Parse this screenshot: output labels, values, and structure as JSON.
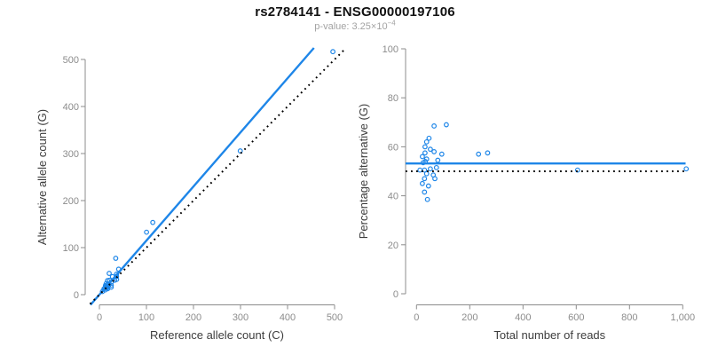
{
  "header": {
    "title": "rs2784141 - ENSG00000197106",
    "subtitle_prefix": "p-value: 3.25×10",
    "subtitle_exponent": "−4"
  },
  "colors": {
    "accent_blue": "#1e86e8",
    "dotted_black": "#000000",
    "axis_line": "#8c8c8c",
    "tick_label": "#8c8c8c",
    "axis_title": "#3d3d3d",
    "title": "#111111",
    "subtitle": "#a3a3a3"
  },
  "chart_data": [
    {
      "type": "scatter",
      "panel": "left",
      "xlabel": "Reference allele count (C)",
      "ylabel": "Alternative allele count (G)",
      "xlim": [
        0,
        500
      ],
      "ylim": [
        0,
        500
      ],
      "xticks": [
        0,
        100,
        200,
        300,
        400,
        500
      ],
      "xtick_labels": [
        "0",
        "100",
        "200",
        "300",
        "400",
        "500"
      ],
      "yticks": [
        0,
        100,
        200,
        300,
        400,
        500
      ],
      "ytick_labels": [
        "0",
        "100",
        "200",
        "300",
        "400",
        "500"
      ],
      "grid": false,
      "legend": "none",
      "marker": "open-circle",
      "points": [
        [
          20.8,
          45.2
        ],
        [
          34.7,
          77.3
        ],
        [
          17.2,
          29.8
        ],
        [
          14.4,
          23.6
        ],
        [
          12.8,
          19.2
        ],
        [
          21.3,
          30.7
        ],
        [
          27.7,
          38.3
        ],
        [
          13.6,
          18.4
        ],
        [
          40.9,
          54.2
        ],
        [
          100.2,
          132.8
        ],
        [
          113.5,
          153.5
        ],
        [
          9.7,
          12.3
        ],
        [
          17.1,
          20.9
        ],
        [
          36.4,
          43.6
        ],
        [
          15.2,
          17.8
        ],
        [
          11.6,
          13.4
        ],
        [
          6.4,
          6.6
        ],
        [
          14.9,
          15.2
        ],
        [
          25.5,
          26.5
        ],
        [
          36.4,
          38.6
        ],
        [
          19.4,
          18.6
        ],
        [
          32.4,
          30.6
        ],
        [
          36.6,
          32.4
        ],
        [
          15.9,
          14.1
        ],
        [
          12.1,
          9.9
        ],
        [
          25.2,
          19.8
        ],
        [
          17.6,
          12.5
        ],
        [
          25.2,
          15.8
        ],
        [
          299.5,
          305.5
        ],
        [
          496.4,
          516.6
        ]
      ],
      "lines": [
        {
          "name": "fit-line",
          "slope": 1.15,
          "intercept": 0,
          "style": "solid",
          "color": "accent"
        },
        {
          "name": "identity-line",
          "slope": 1.0,
          "intercept": 0,
          "style": "dotted",
          "color": "black"
        }
      ]
    },
    {
      "type": "scatter",
      "panel": "right",
      "xlabel": "Total number of reads",
      "ylabel": "Percentage alternative (G)",
      "xlim": [
        0,
        1000
      ],
      "ylim": [
        0,
        100
      ],
      "xticks": [
        0,
        200,
        400,
        600,
        800,
        1000
      ],
      "xtick_labels": [
        "0",
        "200",
        "400",
        "600",
        "800",
        "1,000"
      ],
      "yticks": [
        0,
        20,
        40,
        60,
        80,
        100
      ],
      "ytick_labels": [
        "0",
        "20",
        "40",
        "60",
        "80",
        "100"
      ],
      "grid": false,
      "legend": "none",
      "marker": "open-circle",
      "points": [
        [
          66,
          68.5
        ],
        [
          112,
          69
        ],
        [
          47,
          63.5
        ],
        [
          38,
          62
        ],
        [
          32,
          60
        ],
        [
          52,
          59
        ],
        [
          66,
          58
        ],
        [
          32,
          57.5
        ],
        [
          95,
          57
        ],
        [
          233,
          57
        ],
        [
          267,
          57.5
        ],
        [
          22,
          56
        ],
        [
          38,
          55
        ],
        [
          80,
          54.5
        ],
        [
          33,
          54
        ],
        [
          25,
          53.5
        ],
        [
          13,
          50.5
        ],
        [
          30,
          50.5
        ],
        [
          52,
          51
        ],
        [
          75,
          51.5
        ],
        [
          38,
          49
        ],
        [
          63,
          48.5
        ],
        [
          69,
          47
        ],
        [
          30,
          47
        ],
        [
          22,
          45
        ],
        [
          45,
          44
        ],
        [
          30,
          41.5
        ],
        [
          41,
          38.5
        ],
        [
          605,
          50.5
        ],
        [
          1013,
          51
        ]
      ],
      "lines": [
        {
          "name": "mean-line",
          "slope": 0,
          "intercept": 53.2,
          "style": "solid",
          "color": "accent"
        },
        {
          "name": "null-line",
          "slope": 0,
          "intercept": 50,
          "style": "dotted",
          "color": "black"
        }
      ]
    }
  ]
}
